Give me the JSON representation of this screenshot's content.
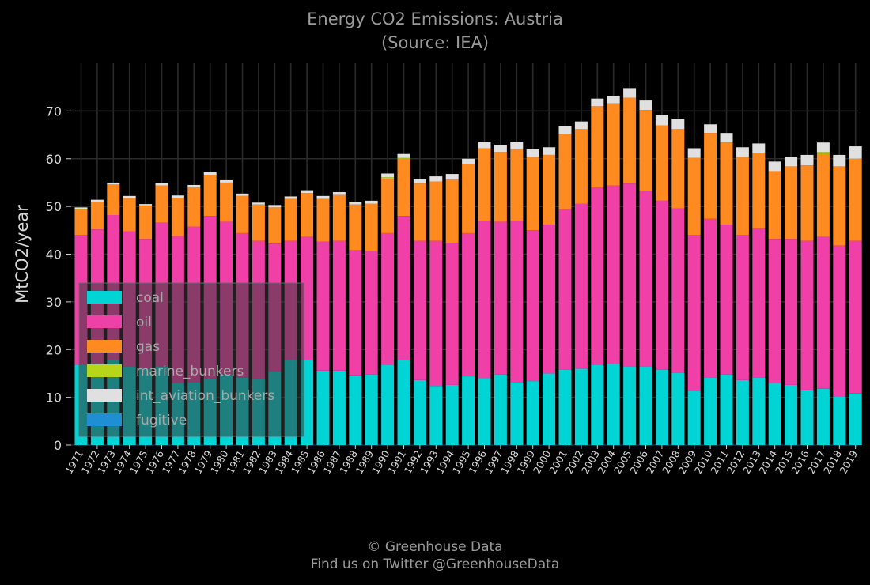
{
  "header": {
    "title": "Energy CO2 Emissions: Austria",
    "subtitle": "(Source: IEA)"
  },
  "footer": {
    "line1": "© Greenhouse Data",
    "line2": "Find us on Twitter @GreenhouseData"
  },
  "chart_data": {
    "type": "bar",
    "stacked": true,
    "title": "Energy CO2 Emissions: Austria",
    "subtitle": "(Source: IEA)",
    "xlabel": "",
    "ylabel": "MtCO2/year",
    "ylim": [
      0,
      80
    ],
    "yticks": [
      0,
      10,
      20,
      30,
      40,
      50,
      60,
      70
    ],
    "grid": true,
    "legend_position": "lower-left",
    "background": "#000000",
    "categories": [
      "1971",
      "1972",
      "1973",
      "1974",
      "1975",
      "1976",
      "1977",
      "1978",
      "1979",
      "1980",
      "1981",
      "1982",
      "1983",
      "1984",
      "1985",
      "1986",
      "1987",
      "1988",
      "1989",
      "1990",
      "1991",
      "1992",
      "1993",
      "1994",
      "1995",
      "1996",
      "1997",
      "1998",
      "1999",
      "2000",
      "2001",
      "2002",
      "2003",
      "2004",
      "2005",
      "2006",
      "2007",
      "2008",
      "2009",
      "2010",
      "2011",
      "2012",
      "2013",
      "2014",
      "2015",
      "2016",
      "2017",
      "2018",
      "2019"
    ],
    "series": [
      {
        "name": "coal",
        "color": "#00d4d4",
        "values": [
          16.8,
          17.0,
          17.8,
          16.4,
          16.0,
          16.4,
          13.0,
          13.2,
          13.8,
          14.8,
          14.2,
          13.8,
          15.4,
          17.8,
          17.8,
          15.6,
          15.6,
          14.6,
          14.8,
          16.8,
          17.8,
          13.6,
          12.4,
          12.6,
          14.4,
          14.0,
          14.8,
          13.2,
          13.4,
          15.0,
          15.8,
          16.0,
          16.8,
          17.0,
          16.4,
          16.4,
          15.8,
          15.2,
          11.4,
          14.2,
          14.8,
          13.6,
          14.2,
          13.0,
          12.6,
          11.6,
          11.8,
          10.2,
          10.8
        ]
      },
      {
        "name": "oil",
        "color": "#f03fa6",
        "values": [
          27.2,
          28.2,
          30.4,
          28.4,
          27.2,
          30.2,
          30.8,
          32.6,
          34.2,
          32.0,
          30.2,
          29.0,
          26.8,
          25.0,
          25.8,
          27.0,
          27.2,
          26.2,
          25.8,
          27.6,
          30.2,
          29.2,
          30.4,
          29.8,
          30.0,
          33.0,
          32.0,
          33.8,
          31.6,
          31.2,
          33.6,
          34.6,
          37.2,
          37.4,
          38.4,
          36.8,
          35.4,
          34.4,
          32.6,
          33.2,
          31.4,
          30.4,
          31.2,
          30.2,
          30.6,
          31.2,
          31.8,
          31.6,
          32.0
        ]
      },
      {
        "name": "gas",
        "color": "#ff8a1f",
        "values": [
          5.4,
          5.8,
          6.4,
          7.0,
          7.0,
          7.8,
          8.0,
          8.2,
          8.6,
          8.2,
          7.8,
          7.6,
          7.6,
          8.8,
          9.2,
          9.0,
          9.6,
          9.6,
          10.0,
          11.4,
          12.0,
          12.0,
          12.4,
          13.2,
          14.4,
          15.2,
          14.6,
          15.0,
          15.4,
          14.6,
          15.8,
          15.6,
          17.0,
          17.2,
          18.0,
          17.0,
          15.8,
          16.6,
          16.2,
          18.0,
          17.2,
          16.4,
          15.8,
          14.2,
          15.2,
          15.8,
          17.4,
          16.6,
          17.2
        ]
      },
      {
        "name": "marine_bunkers",
        "color": "#b7d619",
        "values": [
          0.1,
          0,
          0,
          0,
          0,
          0,
          0,
          0,
          0,
          0,
          0,
          0,
          0,
          0,
          0,
          0,
          0,
          0,
          0,
          0.3,
          0.2,
          0,
          0,
          0,
          0,
          0,
          0,
          0,
          0,
          0,
          0,
          0,
          0,
          0,
          0,
          0,
          0,
          0,
          0,
          0,
          0,
          0,
          0,
          0,
          0,
          0,
          0.4,
          0,
          0
        ]
      },
      {
        "name": "int_aviation_bunkers",
        "color": "#e0e0e0",
        "values": [
          0.3,
          0.4,
          0.4,
          0.4,
          0.3,
          0.5,
          0.5,
          0.5,
          0.6,
          0.5,
          0.5,
          0.4,
          0.5,
          0.5,
          0.6,
          0.6,
          0.6,
          0.6,
          0.6,
          0.8,
          0.8,
          0.9,
          1.1,
          1.2,
          1.2,
          1.4,
          1.5,
          1.6,
          1.6,
          1.6,
          1.6,
          1.6,
          1.6,
          1.6,
          2.0,
          2.0,
          2.2,
          2.2,
          2.0,
          1.8,
          2.0,
          2.0,
          2.0,
          2.0,
          2.0,
          2.2,
          2.0,
          2.4,
          2.6
        ]
      },
      {
        "name": "fugitive",
        "color": "#1f8fd4",
        "values": [
          0,
          0,
          0,
          0,
          0,
          0,
          0,
          0,
          0,
          0,
          0,
          0,
          0,
          0,
          0,
          0,
          0,
          0,
          0,
          0,
          0,
          0,
          0,
          0,
          0,
          0,
          0,
          0,
          0,
          0,
          0,
          0,
          0,
          0,
          0,
          0,
          0,
          0,
          0,
          0,
          0,
          0,
          0,
          0,
          0,
          0,
          0,
          0,
          0
        ]
      }
    ]
  }
}
